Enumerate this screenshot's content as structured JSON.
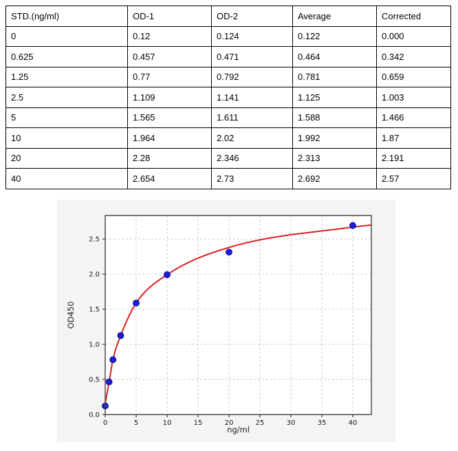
{
  "table": {
    "columns": [
      "STD.(ng/ml)",
      "OD-1",
      "OD-2",
      "Average",
      "Corrected"
    ],
    "rows": [
      [
        "0",
        "0.12",
        "0.124",
        "0.122",
        "0.000"
      ],
      [
        "0.625",
        "0.457",
        "0.471",
        "0.464",
        "0.342"
      ],
      [
        "1.25",
        "0.77",
        "0.792",
        "0.781",
        "0.659"
      ],
      [
        "2.5",
        "1.109",
        "1.141",
        "1.125",
        "1.003"
      ],
      [
        "5",
        "1.565",
        "1.611",
        "1.588",
        "1.466"
      ],
      [
        "10",
        "1.964",
        "2.02",
        "1.992",
        "1.87"
      ],
      [
        "20",
        "2.28",
        "2.346",
        "2.313",
        "2.191"
      ],
      [
        "40",
        "2.654",
        "2.73",
        "2.692",
        "2.57"
      ]
    ]
  },
  "chart_data": {
    "type": "scatter",
    "title": "",
    "xlabel": "ng/ml",
    "ylabel": "OD450",
    "xlim": [
      0,
      43
    ],
    "ylim": [
      0,
      2.835
    ],
    "x_ticks": [
      "0",
      "5",
      "10",
      "15",
      "20",
      "25",
      "30",
      "35",
      "40"
    ],
    "y_ticks": [
      "0.0",
      "0.5",
      "1.0",
      "1.5",
      "2.0",
      "2.5"
    ],
    "grid": "dashed",
    "legend": "none",
    "series": [
      {
        "name": "standard-points",
        "type": "scatter",
        "color": "#1d1dd4",
        "edge_color": "#000090",
        "x": [
          0,
          0.625,
          1.25,
          2.5,
          5,
          10,
          20,
          40
        ],
        "y": [
          0.122,
          0.464,
          0.781,
          1.125,
          1.588,
          1.992,
          2.313,
          2.692
        ]
      },
      {
        "name": "fit-curve",
        "type": "line",
        "color": "#dd1f1f",
        "x": [
          0,
          0.625,
          1.25,
          2.5,
          5,
          10,
          20,
          40,
          43
        ],
        "y": [
          0.16,
          0.464,
          0.781,
          1.125,
          1.588,
          1.992,
          2.38,
          2.67,
          2.7
        ]
      }
    ],
    "colors": {
      "figure_bg": "#f4f4f5",
      "plot_bg": "#ffffff",
      "grid": "#c9c9c9",
      "frame": "#4d4d4d",
      "tick": "#333333",
      "tick_label": "#1a1a1a"
    }
  }
}
